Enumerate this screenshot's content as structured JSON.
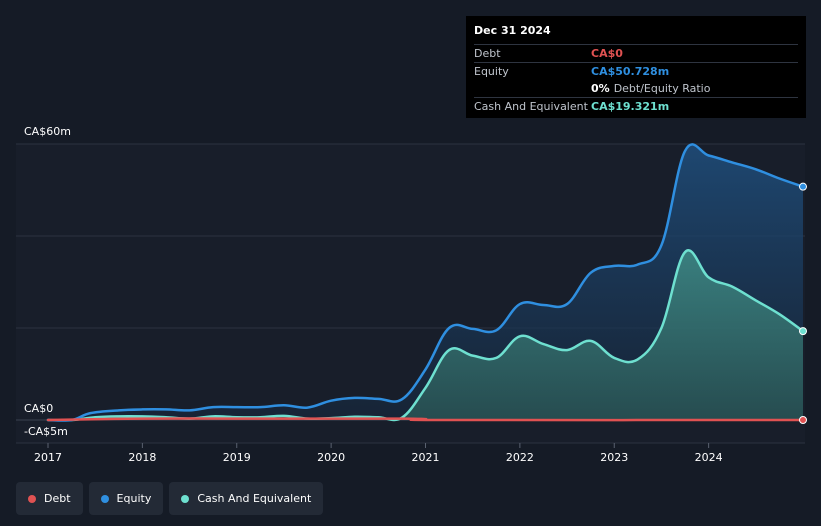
{
  "tooltip": {
    "date": "Dec 31 2024",
    "debt_label": "Debt",
    "debt_value": "CA$0",
    "equity_label": "Equity",
    "equity_value": "CA$50.728m",
    "ratio_value": "0%",
    "ratio_label": "Debt/Equity Ratio",
    "cash_label": "Cash And Equivalent",
    "cash_value": "CA$19.321m"
  },
  "legend": [
    {
      "label": "Debt",
      "color": "#e05252"
    },
    {
      "label": "Equity",
      "color": "#2f8fe0"
    },
    {
      "label": "Cash And Equivalent",
      "color": "#6ee0d0"
    }
  ],
  "chart_data": {
    "type": "area",
    "ylim": [
      -5,
      60
    ],
    "y_ticks": [
      {
        "value": 60,
        "label": "CA$60m"
      },
      {
        "value": 0,
        "label": "CA$0"
      },
      {
        "value": -5,
        "label": "-CA$5m"
      }
    ],
    "xlim": [
      2017.0,
      2025.0
    ],
    "x_ticks": [
      {
        "value": 2017,
        "label": "2017"
      },
      {
        "value": 2018,
        "label": "2018"
      },
      {
        "value": 2019,
        "label": "2019"
      },
      {
        "value": 2020,
        "label": "2020"
      },
      {
        "value": 2021,
        "label": "2021"
      },
      {
        "value": 2022,
        "label": "2022"
      },
      {
        "value": 2023,
        "label": "2023"
      },
      {
        "value": 2024,
        "label": "2024"
      }
    ],
    "grid": true,
    "legend_position": "bottom-left",
    "series": [
      {
        "name": "Debt",
        "color": "#e05252",
        "points": [
          [
            2017.0,
            0
          ],
          [
            2018.0,
            0.3
          ],
          [
            2019.0,
            0.3
          ],
          [
            2020.0,
            0.3
          ],
          [
            2020.75,
            0.3
          ],
          [
            2021.0,
            0.2
          ],
          [
            2021.2,
            0
          ],
          [
            2025.0,
            0
          ]
        ]
      },
      {
        "name": "Equity",
        "color": "#2f8fe0",
        "points": [
          [
            2017.0,
            0
          ],
          [
            2017.25,
            0
          ],
          [
            2017.45,
            1.5
          ],
          [
            2017.75,
            2.1
          ],
          [
            2018.0,
            2.3
          ],
          [
            2018.25,
            2.3
          ],
          [
            2018.5,
            2.1
          ],
          [
            2018.75,
            2.8
          ],
          [
            2019.0,
            2.8
          ],
          [
            2019.25,
            2.8
          ],
          [
            2019.5,
            3.2
          ],
          [
            2019.75,
            2.7
          ],
          [
            2020.0,
            4.2
          ],
          [
            2020.25,
            4.8
          ],
          [
            2020.5,
            4.6
          ],
          [
            2020.75,
            4.5
          ],
          [
            2021.0,
            11.0
          ],
          [
            2021.25,
            20.0
          ],
          [
            2021.5,
            19.8
          ],
          [
            2021.75,
            19.5
          ],
          [
            2022.0,
            25.2
          ],
          [
            2022.25,
            25.0
          ],
          [
            2022.5,
            25.2
          ],
          [
            2022.75,
            32.0
          ],
          [
            2023.0,
            33.5
          ],
          [
            2023.25,
            33.8
          ],
          [
            2023.5,
            38.0
          ],
          [
            2023.75,
            58.5
          ],
          [
            2024.0,
            57.5
          ],
          [
            2024.25,
            56.0
          ],
          [
            2024.5,
            54.5
          ],
          [
            2024.75,
            52.5
          ],
          [
            2025.0,
            50.728
          ]
        ]
      },
      {
        "name": "Cash And Equivalent",
        "color": "#6ee0d0",
        "points": [
          [
            2017.0,
            0
          ],
          [
            2017.25,
            0
          ],
          [
            2017.5,
            0.6
          ],
          [
            2017.75,
            0.8
          ],
          [
            2018.0,
            0.8
          ],
          [
            2018.25,
            0.6
          ],
          [
            2018.5,
            0.3
          ],
          [
            2018.75,
            0.8
          ],
          [
            2019.0,
            0.6
          ],
          [
            2019.25,
            0.6
          ],
          [
            2019.5,
            0.9
          ],
          [
            2019.75,
            0.3
          ],
          [
            2020.0,
            0.4
          ],
          [
            2020.25,
            0.7
          ],
          [
            2020.5,
            0.6
          ],
          [
            2020.75,
            0.5
          ],
          [
            2021.0,
            7.0
          ],
          [
            2021.25,
            15.2
          ],
          [
            2021.5,
            14.0
          ],
          [
            2021.75,
            13.5
          ],
          [
            2022.0,
            18.2
          ],
          [
            2022.25,
            16.5
          ],
          [
            2022.5,
            15.2
          ],
          [
            2022.75,
            17.2
          ],
          [
            2023.0,
            13.5
          ],
          [
            2023.25,
            13.2
          ],
          [
            2023.5,
            20.0
          ],
          [
            2023.75,
            36.5
          ],
          [
            2024.0,
            31.0
          ],
          [
            2024.25,
            29.0
          ],
          [
            2024.5,
            26.0
          ],
          [
            2024.75,
            23.0
          ],
          [
            2025.0,
            19.321
          ]
        ]
      }
    ]
  }
}
